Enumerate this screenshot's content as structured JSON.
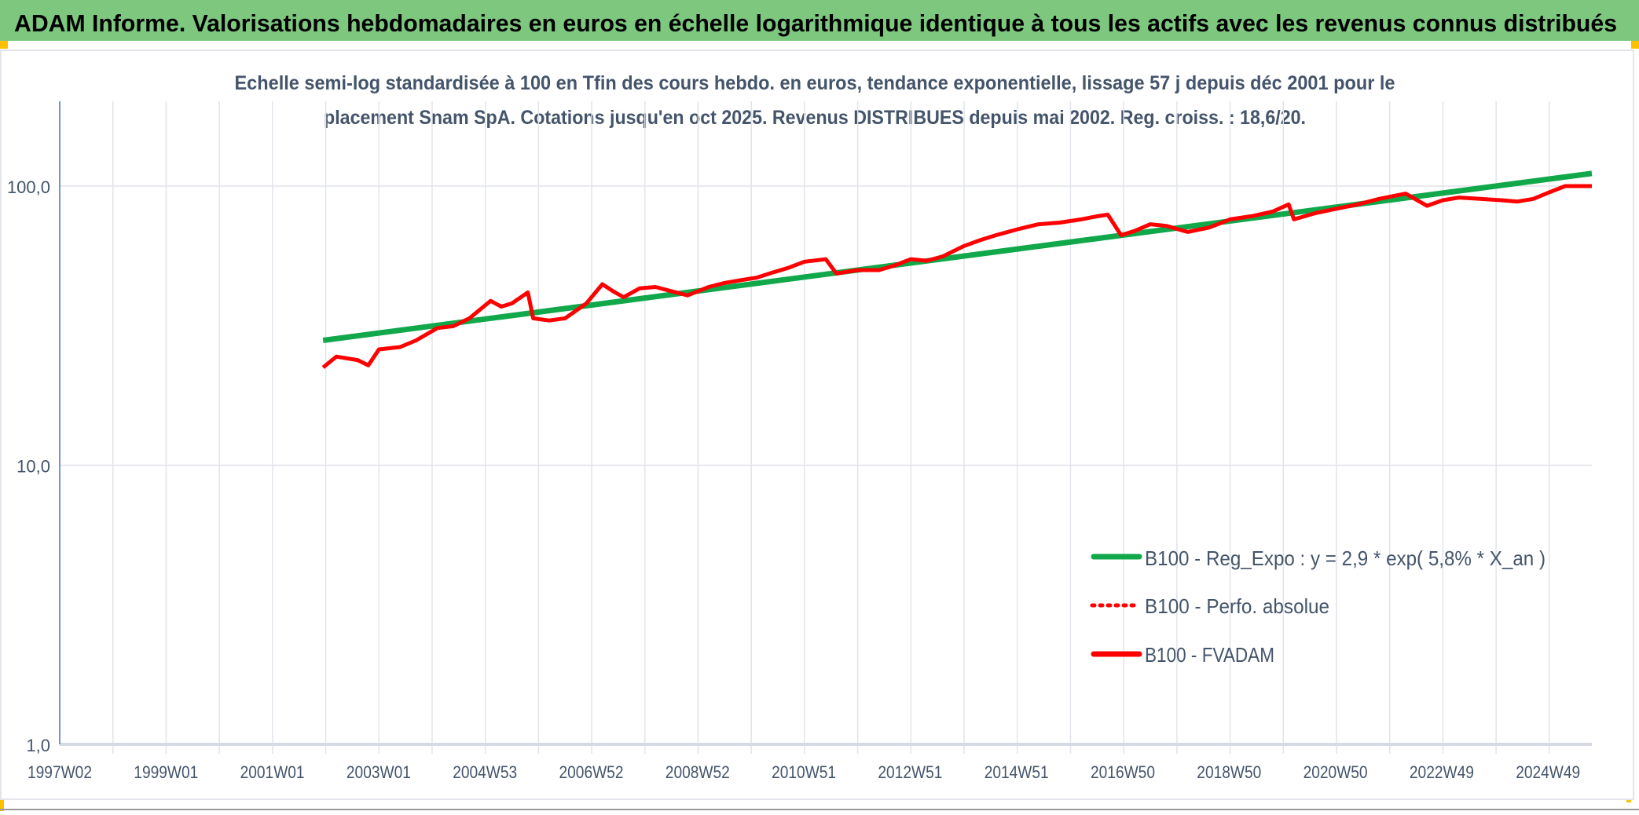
{
  "header": {
    "title": "ADAM Informe. Valorisations hebdomadaires en euros en échelle logarithmique identique à tous les actifs avec les revenus connus distribués"
  },
  "colors": {
    "header_bg": "#7DC87E",
    "trend": "#10A84A",
    "fvadam": "#FF0000",
    "perfo": "#FF0000",
    "axis": "#4472C4",
    "grid": "#DDE1E8",
    "corner": "#FFC000"
  },
  "chart_data": {
    "type": "line",
    "title_line1": "Echelle semi-log standardisée à 100 en Tfin des cours hebdo. en euros, tendance exponentielle, lissage 57 j depuis déc 2001 pour le",
    "title_line2": "placement Snam SpA. Cotations jusqu'en oct 2025. Revenus DISTRIBUES depuis mai 2002. Reg. croiss. : 18,6/20.",
    "y_scale": "log",
    "ylim": [
      1,
      200
    ],
    "y_ticks": [
      {
        "value": 1,
        "label": "1,0"
      },
      {
        "value": 10,
        "label": "10,0"
      },
      {
        "value": 100,
        "label": "100,0"
      }
    ],
    "xlim": [
      1997.0,
      2025.8
    ],
    "x_tick_labels": [
      "1997W02",
      "1999W01",
      "2001W01",
      "2003W01",
      "2004W53",
      "2006W52",
      "2008W52",
      "2010W51",
      "2012W51",
      "2014W51",
      "2016W50",
      "2018W50",
      "2020W50",
      "2022W49",
      "2024W49"
    ],
    "grid": "vertical yearly + horizontal at decades",
    "legend_position": "right-bottom",
    "series": [
      {
        "name": "B100 - Reg_Expo : y = 2,9 * exp( 5,8% *  X_an )",
        "style": "solid",
        "color": "#10A84A",
        "points": [
          [
            2001.95,
            28
          ],
          [
            2025.8,
            111
          ]
        ]
      },
      {
        "name": "B100 - Perfo. absolue",
        "style": "dotted",
        "color": "#FF0000",
        "points": []
      },
      {
        "name": "B100 - FVADAM",
        "style": "solid",
        "color": "#FF0000",
        "points": [
          [
            2001.95,
            22.4
          ],
          [
            2002.2,
            24.5
          ],
          [
            2002.6,
            23.8
          ],
          [
            2002.8,
            22.8
          ],
          [
            2003.0,
            26
          ],
          [
            2003.4,
            26.5
          ],
          [
            2003.7,
            28
          ],
          [
            2004.1,
            31
          ],
          [
            2004.4,
            31.5
          ],
          [
            2004.7,
            33.6
          ],
          [
            2005.1,
            38.8
          ],
          [
            2005.3,
            37
          ],
          [
            2005.5,
            38
          ],
          [
            2005.8,
            41.6
          ],
          [
            2005.9,
            33.6
          ],
          [
            2006.2,
            33
          ],
          [
            2006.5,
            33.6
          ],
          [
            2006.9,
            38
          ],
          [
            2007.2,
            44.5
          ],
          [
            2007.4,
            42
          ],
          [
            2007.6,
            40
          ],
          [
            2007.9,
            43
          ],
          [
            2008.2,
            43.5
          ],
          [
            2008.5,
            42
          ],
          [
            2008.8,
            40.6
          ],
          [
            2009.2,
            43.5
          ],
          [
            2009.5,
            45
          ],
          [
            2009.8,
            46
          ],
          [
            2010.1,
            47
          ],
          [
            2010.4,
            49
          ],
          [
            2010.7,
            51
          ],
          [
            2011.0,
            53.6
          ],
          [
            2011.4,
            54.7
          ],
          [
            2011.6,
            48.6
          ],
          [
            2012.0,
            50
          ],
          [
            2012.4,
            50
          ],
          [
            2012.7,
            52
          ],
          [
            2013.0,
            54.7
          ],
          [
            2013.3,
            54
          ],
          [
            2013.6,
            56
          ],
          [
            2014.0,
            61
          ],
          [
            2014.3,
            64
          ],
          [
            2014.6,
            66.7
          ],
          [
            2015.0,
            70
          ],
          [
            2015.4,
            73
          ],
          [
            2015.8,
            74
          ],
          [
            2016.2,
            76
          ],
          [
            2016.5,
            78
          ],
          [
            2016.7,
            79
          ],
          [
            2016.95,
            66.7
          ],
          [
            2017.2,
            69
          ],
          [
            2017.5,
            73
          ],
          [
            2017.8,
            72
          ],
          [
            2018.2,
            68.5
          ],
          [
            2018.6,
            71
          ],
          [
            2019.0,
            76
          ],
          [
            2019.4,
            78
          ],
          [
            2019.8,
            81
          ],
          [
            2020.1,
            86
          ],
          [
            2020.2,
            76
          ],
          [
            2020.6,
            80
          ],
          [
            2021.0,
            83
          ],
          [
            2021.4,
            86
          ],
          [
            2021.8,
            90
          ],
          [
            2022.3,
            94
          ],
          [
            2022.7,
            85
          ],
          [
            2023.0,
            89
          ],
          [
            2023.3,
            91
          ],
          [
            2023.7,
            90
          ],
          [
            2024.1,
            89
          ],
          [
            2024.4,
            88
          ],
          [
            2024.7,
            90
          ],
          [
            2025.0,
            95
          ],
          [
            2025.3,
            100
          ],
          [
            2025.8,
            100
          ]
        ]
      }
    ]
  }
}
